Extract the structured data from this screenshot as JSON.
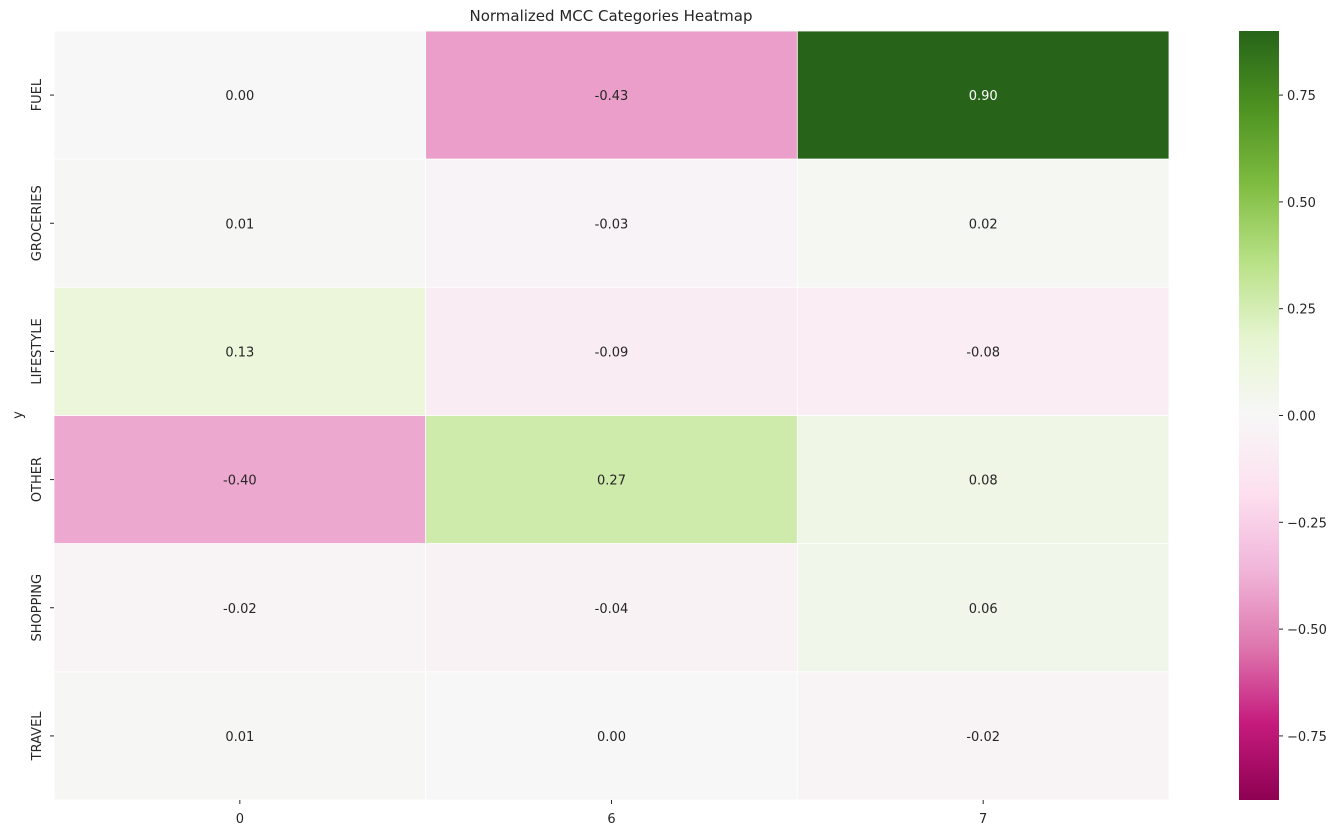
{
  "chart_data": {
    "type": "heatmap",
    "title": "Normalized MCC Categories Heatmap",
    "xlabel": "",
    "ylabel": "y",
    "x_categories": [
      "0",
      "6",
      "7"
    ],
    "y_categories": [
      "FUEL",
      "GROCERIES",
      "LIFESTYLE",
      "OTHER",
      "SHOPPING",
      "TRAVEL"
    ],
    "values": [
      [
        0.0,
        -0.43,
        0.9
      ],
      [
        0.01,
        -0.03,
        0.02
      ],
      [
        0.13,
        -0.09,
        -0.08
      ],
      [
        -0.4,
        0.27,
        0.08
      ],
      [
        -0.02,
        -0.04,
        0.06
      ],
      [
        0.01,
        0.0,
        -0.02
      ]
    ],
    "annotations": [
      [
        "0.00",
        "-0.43",
        "0.90"
      ],
      [
        "0.01",
        "-0.03",
        "0.02"
      ],
      [
        "0.13",
        "-0.09",
        "-0.08"
      ],
      [
        "-0.40",
        "0.27",
        "0.08"
      ],
      [
        "-0.02",
        "-0.04",
        "0.06"
      ],
      [
        "0.01",
        "0.00",
        "-0.02"
      ]
    ],
    "colormap": "PiYG",
    "vmin": -0.9,
    "vmax": 0.9,
    "colorbar": {
      "ticks": [
        0.75,
        0.5,
        0.25,
        0.0,
        -0.25,
        -0.5,
        -0.75
      ],
      "tick_labels": [
        "0.75",
        "0.50",
        "0.25",
        "0.00",
        "−0.25",
        "−0.50",
        "−0.75"
      ]
    },
    "cell_separator_color": "#ffffff"
  }
}
